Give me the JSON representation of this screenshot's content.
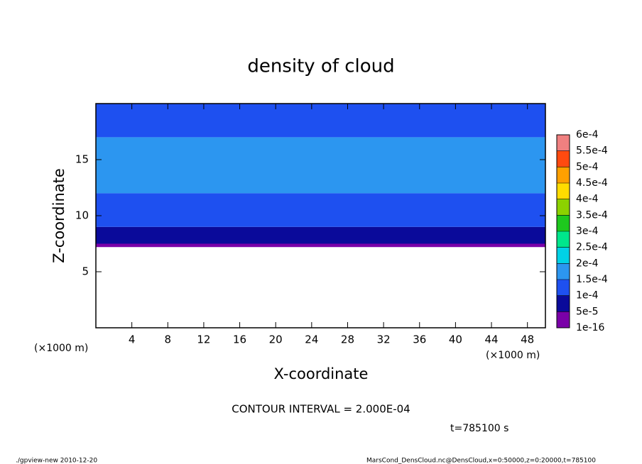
{
  "chart_data": {
    "type": "contour",
    "title": "density of cloud",
    "xlabel": "X-coordinate",
    "ylabel": "Z-coordinate",
    "xunit": "(×1000 m)",
    "annotation": "CONTOUR INTERVAL = 2.000E-04",
    "time_label": "t=785100 s",
    "footer_left": "./gpview-new   2010-12-20",
    "footer_right": "MarsCond_DensCloud.nc@DensCloud,x=0:50000,z=0:20000,t=785100",
    "xlim": [
      0,
      50
    ],
    "xticks": [
      4,
      8,
      12,
      16,
      20,
      24,
      28,
      32,
      36,
      40,
      44,
      48
    ],
    "ylim": [
      0,
      20
    ],
    "yticks": [
      5,
      10,
      15
    ],
    "profile": {
      "z_bottom": [
        7.2,
        7.5,
        9,
        12,
        17
      ],
      "z_top": [
        7.5,
        9,
        12,
        17,
        20
      ],
      "values": [
        3e-05,
        7e-05,
        0.00012,
        0.00017,
        0.00013
      ]
    },
    "levels": [
      {
        "value": 1e-16,
        "label": "1e-16"
      },
      {
        "value": 5e-05,
        "label": "5e-5"
      },
      {
        "value": 0.0001,
        "label": "1e-4"
      },
      {
        "value": 0.00015,
        "label": "1.5e-4"
      },
      {
        "value": 0.0002,
        "label": "2e-4"
      },
      {
        "value": 0.00025,
        "label": "2.5e-4"
      },
      {
        "value": 0.0003,
        "label": "3e-4"
      },
      {
        "value": 0.00035,
        "label": "3.5e-4"
      },
      {
        "value": 0.0004,
        "label": "4e-4"
      },
      {
        "value": 0.00045,
        "label": "4.5e-4"
      },
      {
        "value": 0.0005,
        "label": "5e-4"
      },
      {
        "value": 0.00055,
        "label": "5.5e-4"
      },
      {
        "value": 0.0006,
        "label": "6e-4"
      }
    ],
    "colors": [
      "#7a00a8",
      "#0a0a9a",
      "#1e50f0",
      "#2c96f0",
      "#00d2e6",
      "#00e68c",
      "#1ec81e",
      "#8cd200",
      "#ffdc00",
      "#ffa000",
      "#ff4a10",
      "#f08080"
    ]
  }
}
